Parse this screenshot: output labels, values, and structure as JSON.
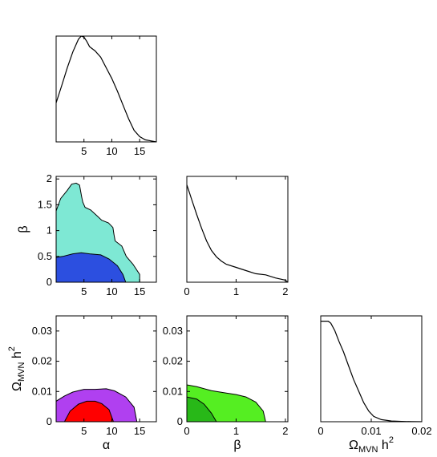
{
  "chart_data": [
    {
      "id": "p_alpha",
      "type": "line",
      "xlim": [
        0,
        18
      ],
      "ylim": [
        0,
        1
      ],
      "xticks": [
        5,
        10,
        15
      ],
      "xtick_labels": [
        "5",
        "10",
        "15"
      ],
      "yticks": [],
      "ytick_labels": [],
      "xlabel": "",
      "ylabel": "",
      "series": [
        {
          "color": "#000000",
          "x": [
            0,
            1,
            2,
            3,
            4,
            4.5,
            5,
            5.5,
            6,
            7,
            8,
            9,
            10,
            11,
            12,
            13,
            14,
            15,
            16,
            17,
            18
          ],
          "y": [
            0.37,
            0.53,
            0.7,
            0.85,
            0.97,
            1.0,
            0.99,
            0.95,
            0.9,
            0.86,
            0.8,
            0.7,
            0.6,
            0.48,
            0.35,
            0.22,
            0.11,
            0.05,
            0.02,
            0.01,
            0.0
          ]
        }
      ]
    },
    {
      "id": "alpha_beta",
      "type": "area",
      "xlim": [
        0,
        18
      ],
      "ylim": [
        0,
        2.05
      ],
      "xticks": [
        5,
        10,
        15
      ],
      "xtick_labels": [
        "5",
        "10",
        "15"
      ],
      "yticks": [
        0,
        0.5,
        1,
        1.5,
        2
      ],
      "ytick_labels": [
        "0",
        "0.5",
        "1",
        "1.5",
        "2"
      ],
      "xlabel": "",
      "ylabel": "β",
      "regions": [
        {
          "fill": "#7ee8d4",
          "x": [
            0,
            0,
            0.8,
            2.0,
            2.8,
            3.6,
            4.2,
            4.6,
            4.8,
            5.2,
            6.2,
            7.2,
            8.2,
            9.4,
            10.2,
            10.4,
            10.6,
            11.8,
            12.6,
            13.8,
            15.0,
            15.0
          ],
          "y": [
            0,
            1.38,
            1.62,
            1.78,
            1.9,
            1.92,
            1.88,
            1.65,
            1.55,
            1.45,
            1.4,
            1.3,
            1.2,
            1.15,
            1.06,
            0.92,
            0.8,
            0.7,
            0.5,
            0.35,
            0.15,
            0
          ]
        },
        {
          "fill": "#2c4fe0",
          "x": [
            0,
            0,
            1.2,
            3.0,
            4.5,
            6.0,
            8.0,
            9.5,
            11.0,
            12.0,
            12.5
          ],
          "y": [
            0,
            0.48,
            0.5,
            0.55,
            0.57,
            0.55,
            0.53,
            0.45,
            0.32,
            0.15,
            0
          ]
        }
      ]
    },
    {
      "id": "p_beta",
      "type": "line",
      "xlim": [
        0,
        2.05
      ],
      "ylim": [
        0,
        1
      ],
      "xticks": [
        0,
        1,
        2
      ],
      "xtick_labels": [
        "0",
        "1",
        "2"
      ],
      "yticks": [],
      "ytick_labels": [],
      "xlabel": "",
      "ylabel": "",
      "series": [
        {
          "color": "#000000",
          "x": [
            0,
            0.05,
            0.1,
            0.2,
            0.3,
            0.4,
            0.5,
            0.6,
            0.7,
            0.8,
            1.0,
            1.2,
            1.4,
            1.6,
            1.8,
            2.0,
            2.05
          ],
          "y": [
            0.92,
            0.85,
            0.78,
            0.64,
            0.51,
            0.39,
            0.3,
            0.24,
            0.2,
            0.17,
            0.14,
            0.11,
            0.08,
            0.07,
            0.04,
            0.02,
            0.0
          ]
        }
      ]
    },
    {
      "id": "alpha_omega",
      "type": "area",
      "xlim": [
        0,
        18
      ],
      "ylim": [
        0,
        0.035
      ],
      "xticks": [
        5,
        10,
        15
      ],
      "xtick_labels": [
        "5",
        "10",
        "15"
      ],
      "yticks": [
        0,
        0.01,
        0.02,
        0.03
      ],
      "ytick_labels": [
        "0",
        "0.01",
        "0.02",
        "0.03"
      ],
      "xlabel": "α",
      "ylabel": "Ω",
      "ylabel_sub": "MVN",
      "ylabel_tail": " h",
      "ylabel_sup": "2",
      "regions": [
        {
          "fill": "#b040f0",
          "x": [
            0,
            0,
            1.5,
            3.0,
            5.0,
            7.0,
            9.0,
            10.5,
            12.5,
            14.0,
            14.5
          ],
          "y": [
            0,
            0.0068,
            0.0085,
            0.0098,
            0.0107,
            0.0107,
            0.0109,
            0.0102,
            0.0082,
            0.0048,
            0
          ]
        },
        {
          "fill": "#ff0000",
          "x": [
            1.5,
            2.5,
            4.0,
            5.5,
            7.0,
            8.2,
            9.5,
            10.3
          ],
          "y": [
            0,
            0.0035,
            0.0058,
            0.0068,
            0.0068,
            0.006,
            0.004,
            0
          ]
        }
      ]
    },
    {
      "id": "beta_omega",
      "type": "area",
      "xlim": [
        0,
        2.05
      ],
      "ylim": [
        0,
        0.035
      ],
      "xticks": [
        0,
        1,
        2
      ],
      "xtick_labels": [
        "0",
        "1",
        "2"
      ],
      "yticks": [
        0,
        0.01,
        0.02,
        0.03
      ],
      "ytick_labels": [
        "0",
        "0.01",
        "0.02",
        "0.03"
      ],
      "xlabel": "β",
      "ylabel": "",
      "regions": [
        {
          "fill": "#55ee22",
          "x": [
            0,
            0,
            0.2,
            0.5,
            0.8,
            1.0,
            1.2,
            1.4,
            1.55,
            1.6
          ],
          "y": [
            0,
            0.0122,
            0.0116,
            0.0103,
            0.0095,
            0.009,
            0.0082,
            0.0065,
            0.0035,
            0
          ]
        },
        {
          "fill": "#28b818",
          "x": [
            0,
            0,
            0.2,
            0.35,
            0.5,
            0.6
          ],
          "y": [
            0,
            0.0082,
            0.0075,
            0.0058,
            0.0028,
            0
          ]
        }
      ]
    },
    {
      "id": "p_omega",
      "type": "line",
      "xlim": [
        0,
        0.02
      ],
      "ylim": [
        0,
        1
      ],
      "xticks": [
        0,
        0.01,
        0.02
      ],
      "xtick_labels": [
        "0",
        "0.01",
        "0.02"
      ],
      "yticks": [],
      "ytick_labels": [],
      "xlabel": "Ω",
      "ylabel": "",
      "xlabel_sub": "MVN",
      "xlabel_tail": " h",
      "xlabel_sup": "2",
      "series": [
        {
          "color": "#000000",
          "x": [
            0,
            0.0015,
            0.002,
            0.0028,
            0.0036,
            0.0045,
            0.0055,
            0.0065,
            0.0075,
            0.0085,
            0.0095,
            0.0105,
            0.012,
            0.014,
            0.016,
            0.018,
            0.02
          ],
          "y": [
            0.95,
            0.95,
            0.93,
            0.86,
            0.76,
            0.66,
            0.53,
            0.4,
            0.29,
            0.18,
            0.1,
            0.05,
            0.02,
            0.007,
            0.003,
            0.001,
            0.0
          ]
        }
      ]
    }
  ]
}
